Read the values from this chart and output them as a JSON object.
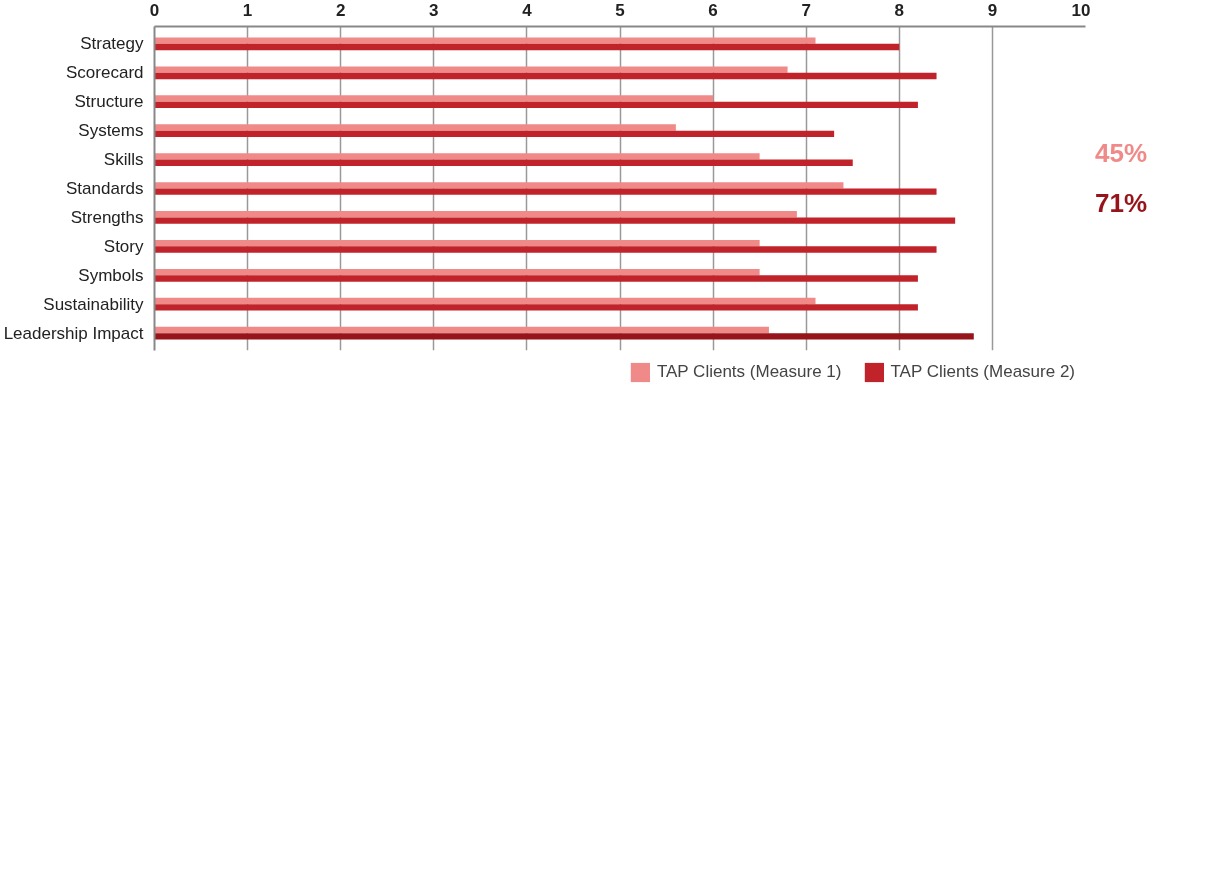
{
  "chart_data": {
    "type": "bar",
    "orientation": "horizontal",
    "categories": [
      "Strategy",
      "Scorecard",
      "Structure",
      "Systems",
      "Skills",
      "Standards",
      "Strengths",
      "Story",
      "Symbols",
      "Sustainability",
      "Leadership Impact"
    ],
    "series": [
      {
        "name": "TAP Clients (Measure 1)",
        "color": "#f08a88",
        "values": [
          7.1,
          6.8,
          6.0,
          5.6,
          6.5,
          7.4,
          6.9,
          6.5,
          6.5,
          7.1,
          6.6
        ]
      },
      {
        "name": "TAP Clients (Measure 2)",
        "color": "#c1232b",
        "colors": [
          "#c1232b",
          "#c1232b",
          "#c1232b",
          "#c1232b",
          "#c1232b",
          "#c1232b",
          "#c1232b",
          "#c1232b",
          "#c1232b",
          "#c1232b",
          "#96141a"
        ],
        "values": [
          8.0,
          8.4,
          8.2,
          7.3,
          7.5,
          8.4,
          8.6,
          8.4,
          8.2,
          8.2,
          8.8
        ]
      }
    ],
    "xlim": [
      0,
      10
    ],
    "xticks": [
      0,
      1,
      2,
      3,
      4,
      5,
      6,
      7,
      8,
      9,
      10
    ],
    "grid": "x",
    "legend": "bottom",
    "annotations": [
      "45%",
      "71%"
    ]
  }
}
